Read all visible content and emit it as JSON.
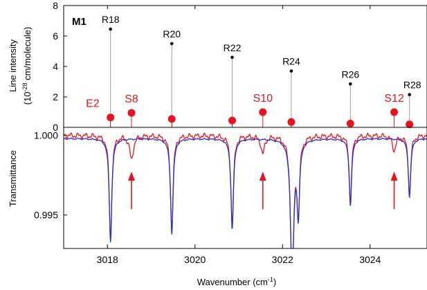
{
  "chart_data": [
    {
      "type": "stem",
      "panel_label": "M1",
      "ylabel_line1": "Line intensity",
      "ylabel_line2": "(10",
      "ylabel_exp": "-28",
      "ylabel_unit": " cm/molecule)",
      "xlim": [
        3017.0,
        3025.3
      ],
      "ylim": [
        0,
        8
      ],
      "yticks": [
        0,
        2,
        4,
        6,
        8
      ],
      "black_series": {
        "color": "#000000",
        "points": [
          {
            "label": "R18",
            "x": 3018.07,
            "y": 6.45
          },
          {
            "label": "R20",
            "x": 3019.47,
            "y": 5.5
          },
          {
            "label": "R22",
            "x": 3020.85,
            "y": 4.6
          },
          {
            "label": "R24",
            "x": 3022.2,
            "y": 3.7
          },
          {
            "label": "R26",
            "x": 3023.55,
            "y": 2.85
          },
          {
            "label": "R28",
            "x": 3024.9,
            "y": 2.15
          }
        ]
      },
      "red_series": {
        "color": "#e8141d",
        "points": [
          {
            "label": "E2",
            "x": 3018.07,
            "y": 0.65
          },
          {
            "label": "S8",
            "x": 3018.55,
            "y": 0.95
          },
          {
            "label": "",
            "x": 3019.47,
            "y": 0.55
          },
          {
            "label": "",
            "x": 3020.85,
            "y": 0.45
          },
          {
            "label": "S10",
            "x": 3021.55,
            "y": 1.0
          },
          {
            "label": "",
            "x": 3022.2,
            "y": 0.35
          },
          {
            "label": "",
            "x": 3023.55,
            "y": 0.25
          },
          {
            "label": "S12",
            "x": 3024.55,
            "y": 1.0
          },
          {
            "label": "",
            "x": 3024.9,
            "y": 0.2
          }
        ]
      }
    },
    {
      "type": "line",
      "ylabel": "Transmittance",
      "xlabel_prefix": "Wavenumber (cm",
      "xlabel_exp": "-1",
      "xlabel_suffix": ")",
      "xlim": [
        3017.0,
        3025.3
      ],
      "ylim": [
        0.9929,
        1.0005
      ],
      "xticks": [
        3018,
        3020,
        3022,
        3024
      ],
      "yticks": [
        0.995,
        1.0
      ],
      "ytick_labels": [
        "0.995",
        "1.000"
      ],
      "series": [
        {
          "color": "#e8141d"
        },
        {
          "color": "#1f2fd4"
        }
      ],
      "arrows_x": [
        3018.55,
        3021.55,
        3024.55
      ],
      "arrow_color": "#e8141d"
    }
  ]
}
